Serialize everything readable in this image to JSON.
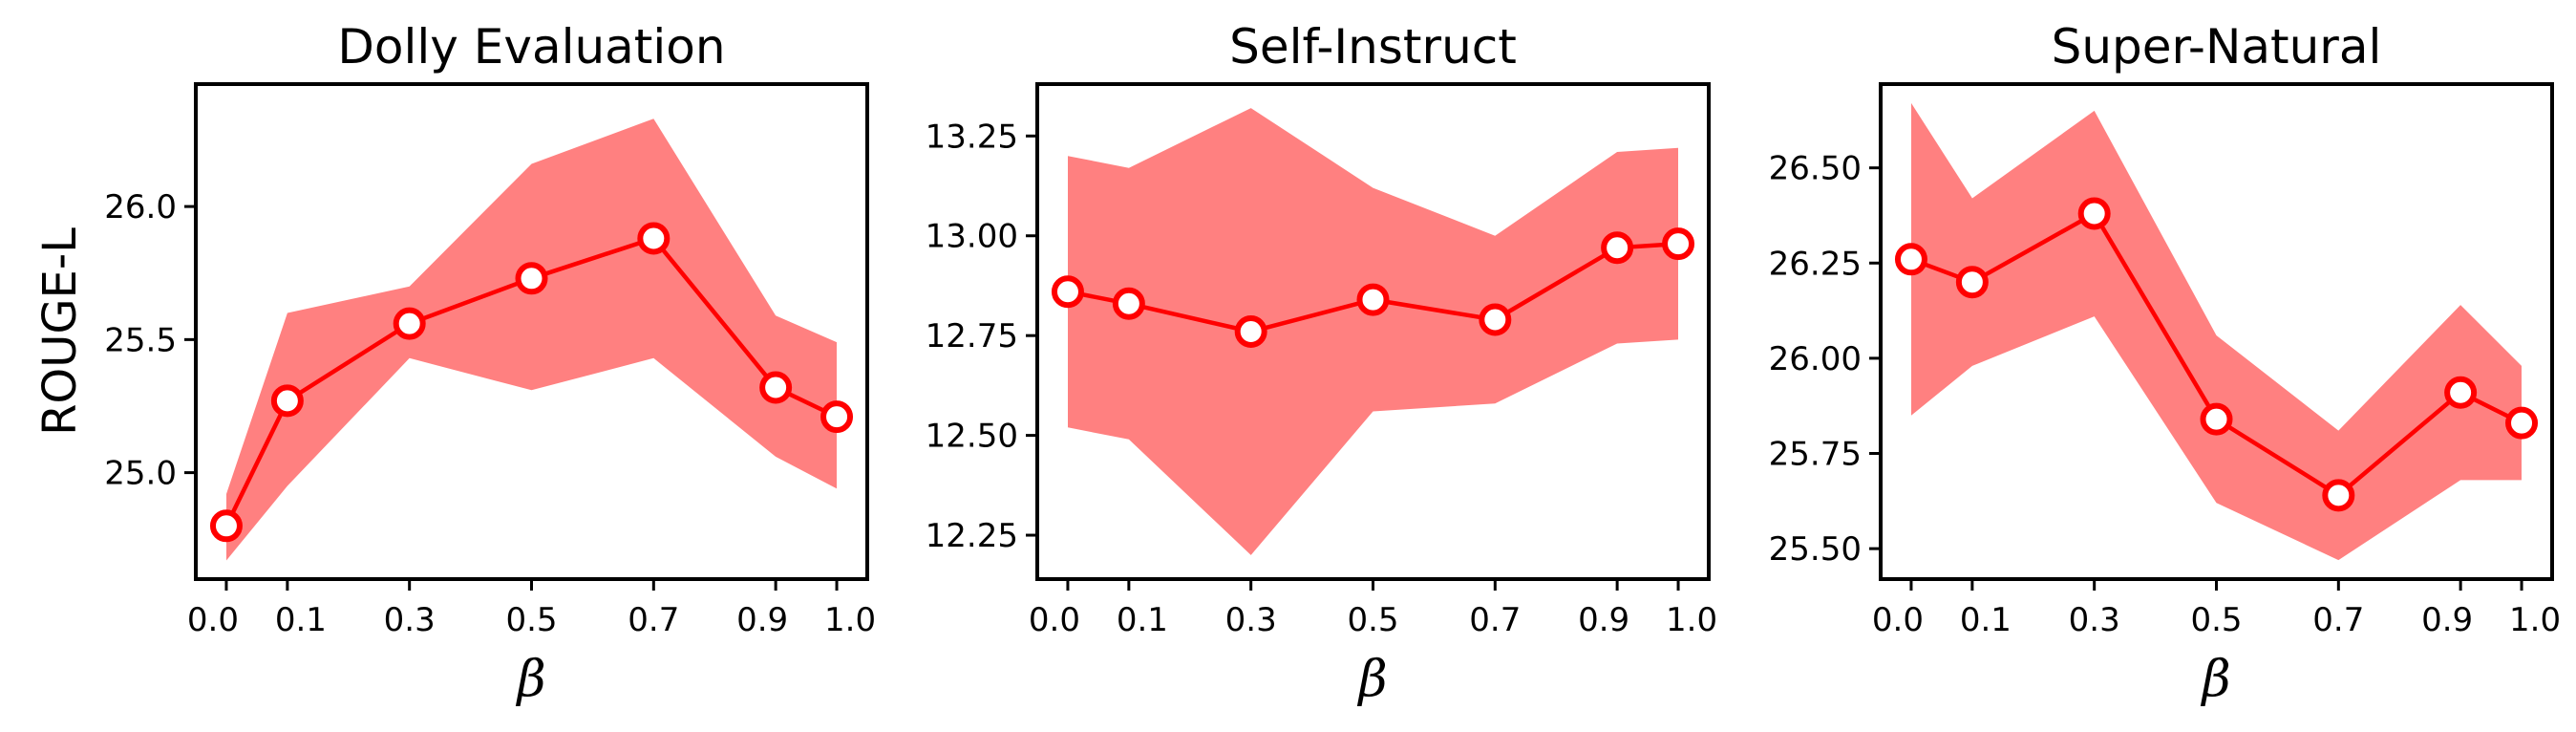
{
  "style": {
    "line_color": "#ff0000",
    "band_color": "#ff8080",
    "marker_fill": "#ffffff"
  },
  "chart_data": [
    {
      "type": "line",
      "title": "Dolly Evaluation",
      "xlabel": "β",
      "ylabel": "ROUGE-L",
      "x": [
        0.0,
        0.1,
        0.3,
        0.5,
        0.7,
        0.9,
        1.0
      ],
      "xticks": [
        "0.0",
        "0.1",
        "0.3",
        "0.5",
        "0.7",
        "0.9",
        "1.0"
      ],
      "values": [
        24.8,
        25.27,
        25.56,
        25.73,
        25.88,
        25.32,
        25.21
      ],
      "upper": [
        24.92,
        25.6,
        25.7,
        26.16,
        26.33,
        25.59,
        25.49
      ],
      "lower": [
        24.67,
        24.95,
        25.43,
        25.31,
        25.43,
        25.06,
        24.94
      ],
      "ylim": [
        24.6,
        26.46
      ],
      "yticks": [
        "25.0",
        "25.5",
        "26.0"
      ],
      "ytick_values": [
        25.0,
        25.5,
        26.0
      ],
      "grid": false
    },
    {
      "type": "line",
      "title": "Self-Instruct",
      "xlabel": "β",
      "ylabel": "",
      "x": [
        0.0,
        0.1,
        0.3,
        0.5,
        0.7,
        0.9,
        1.0
      ],
      "xticks": [
        "0.0",
        "0.1",
        "0.3",
        "0.5",
        "0.7",
        "0.9",
        "1.0"
      ],
      "values": [
        12.86,
        12.83,
        12.76,
        12.84,
        12.79,
        12.97,
        12.98
      ],
      "upper": [
        13.2,
        13.17,
        13.32,
        13.12,
        13.0,
        13.21,
        13.22
      ],
      "lower": [
        12.52,
        12.49,
        12.2,
        12.56,
        12.58,
        12.73,
        12.74
      ],
      "ylim": [
        12.14,
        13.38
      ],
      "yticks": [
        "12.25",
        "12.50",
        "12.75",
        "13.00",
        "13.25"
      ],
      "ytick_values": [
        12.25,
        12.5,
        12.75,
        13.0,
        13.25
      ],
      "grid": false
    },
    {
      "type": "line",
      "title": "Super-Natural",
      "xlabel": "β",
      "ylabel": "",
      "x": [
        0.0,
        0.1,
        0.3,
        0.5,
        0.7,
        0.9,
        1.0
      ],
      "xticks": [
        "0.0",
        "0.1",
        "0.3",
        "0.5",
        "0.7",
        "0.9",
        "1.0"
      ],
      "values": [
        26.26,
        26.2,
        26.38,
        25.84,
        25.64,
        25.91,
        25.83
      ],
      "upper": [
        26.67,
        26.42,
        26.65,
        26.06,
        25.81,
        26.14,
        25.98
      ],
      "lower": [
        25.85,
        25.98,
        26.11,
        25.62,
        25.47,
        25.68,
        25.68
      ],
      "ylim": [
        25.42,
        26.72
      ],
      "yticks": [
        "25.50",
        "25.75",
        "26.00",
        "26.25",
        "26.50"
      ],
      "ytick_values": [
        25.5,
        25.75,
        26.0,
        26.25,
        26.5
      ],
      "grid": false
    }
  ]
}
